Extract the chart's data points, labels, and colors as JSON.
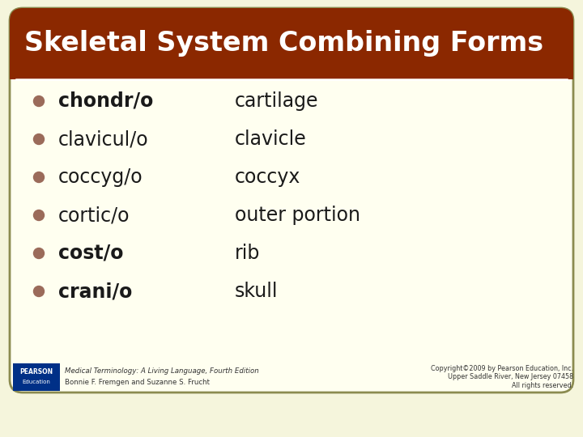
{
  "title": "Skeletal System Combining Forms",
  "title_bg_color": "#8B2800",
  "title_text_color": "#FFFFFF",
  "body_bg_color": "#FFFFF0",
  "slide_bg_color": "#F5F5DC",
  "border_color": "#8B8B50",
  "bullet_color": "#9B6B5A",
  "terms": [
    "chondr/o",
    "clavicul/o",
    "coccyg/o",
    "cortic/o",
    "cost/o",
    "crani/o"
  ],
  "definitions": [
    "cartilage",
    "clavicle",
    "coccyx",
    "outer portion",
    "rib",
    "skull"
  ],
  "bold_indices": [
    0,
    4,
    5
  ],
  "term_color": "#1a1a1a",
  "def_color": "#1a1a1a",
  "footer_left_line1": "Medical Terminology: A Living Language, Fourth Edition",
  "footer_left_line2": "Bonnie F. Fremgen and Suzanne S. Frucht",
  "footer_right_line1": "Copyright©2009 by Pearson Education, Inc.",
  "footer_right_line2": "Upper Saddle River, New Jersey 07458",
  "footer_right_line3": "All rights reserved.",
  "footer_text_color": "#333333",
  "pearson_box_color": "#003087"
}
